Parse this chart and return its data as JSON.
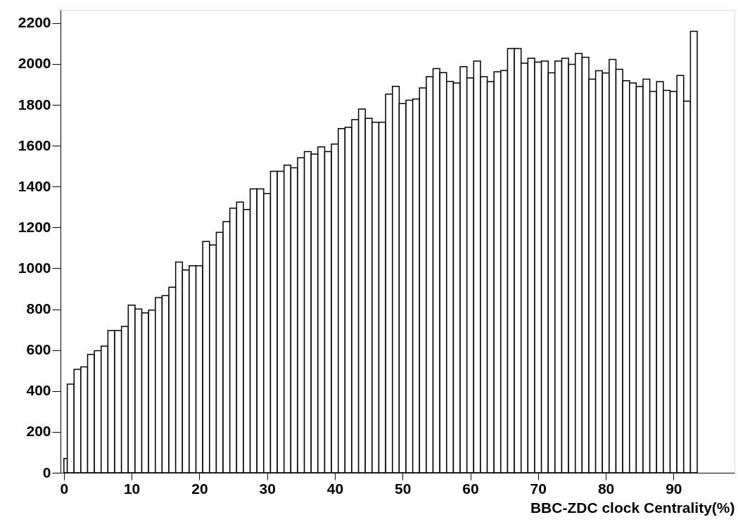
{
  "chart_data": {
    "type": "histogram",
    "xlabel": "BBC-ZDC clock Centrality(%)",
    "bins": [
      0,
      0.5,
      1.5,
      2.5,
      3.5,
      4.5,
      5.5,
      6.5,
      7.5,
      8.5,
      9.5,
      10.5,
      11.5,
      12.5,
      13.5,
      14.5,
      15.5,
      16.5,
      17.5,
      18.5,
      19.5,
      20.5,
      21.5,
      22.5,
      23.5,
      24.5,
      25.5,
      26.5,
      27.5,
      28.5,
      29.5,
      30.5,
      31.5,
      32.5,
      33.5,
      34.5,
      35.5,
      36.5,
      37.5,
      38.5,
      39.5,
      40.5,
      41.5,
      42.5,
      43.5,
      44.5,
      45.5,
      46.5,
      47.5,
      48.5,
      49.5,
      50.5,
      51.5,
      52.5,
      53.5,
      54.5,
      55.5,
      56.5,
      57.5,
      58.5,
      59.5,
      60.5,
      61.5,
      62.5,
      63.5,
      64.5,
      65.5,
      66.5,
      67.5,
      68.5,
      69.5,
      70.5,
      71.5,
      72.5,
      73.5,
      74.5,
      75.5,
      76.5,
      77.5,
      78.5,
      79.5,
      80.5,
      81.5,
      82.5,
      83.5,
      84.5,
      85.5,
      86.5,
      87.5,
      88.5,
      89.5,
      90.5,
      91.5,
      92.5,
      93.5
    ],
    "values": [
      70,
      434,
      506,
      518,
      579,
      597,
      620,
      696,
      696,
      716,
      820,
      801,
      782,
      796,
      857,
      867,
      908,
      1031,
      992,
      1013,
      1013,
      1132,
      1114,
      1176,
      1229,
      1294,
      1324,
      1288,
      1389,
      1389,
      1366,
      1475,
      1475,
      1505,
      1492,
      1541,
      1571,
      1559,
      1595,
      1571,
      1608,
      1684,
      1690,
      1728,
      1780,
      1734,
      1715,
      1715,
      1853,
      1891,
      1806,
      1823,
      1829,
      1883,
      1938,
      1978,
      1958,
      1915,
      1907,
      1987,
      1932,
      2015,
      1938,
      1914,
      1962,
      1968,
      2076,
      2076,
      2004,
      2028,
      2009,
      2015,
      1957,
      2015,
      2028,
      1998,
      2052,
      2033,
      1926,
      1967,
      1956,
      2022,
      1974,
      1918,
      1907,
      1890,
      1926,
      1866,
      1914,
      1871,
      1866,
      1944,
      1818,
      2160
    ],
    "color": "#000000",
    "xlim": [
      -0.5,
      99
    ],
    "ylim": [
      0,
      2265
    ],
    "xticks": [
      0,
      10,
      20,
      30,
      40,
      50,
      60,
      70,
      80,
      90
    ],
    "yticks": [
      0,
      200,
      400,
      600,
      800,
      1000,
      1200,
      1400,
      1600,
      1800,
      2000,
      2200
    ],
    "grid": false
  }
}
